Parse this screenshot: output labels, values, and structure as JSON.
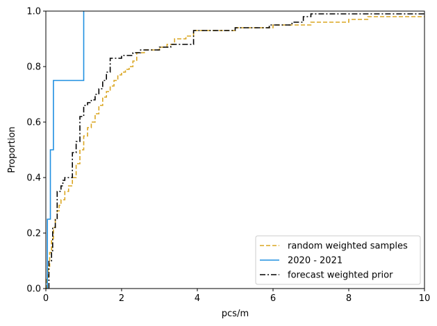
{
  "chart_data": {
    "type": "line",
    "subtype": "empirical-cdf-step",
    "title": "",
    "xlabel": "pcs/m",
    "ylabel": "Proportion",
    "xlim": [
      0,
      10
    ],
    "ylim": [
      0,
      1
    ],
    "x_ticks": [
      "0",
      "2",
      "4",
      "6",
      "8",
      "10"
    ],
    "y_ticks": [
      "0.0",
      "0.2",
      "0.4",
      "0.6",
      "0.8",
      "1.0"
    ],
    "grid": false,
    "legend": {
      "position": "lower-right"
    },
    "series": [
      {
        "name": "random weighted samples",
        "color": "#DAA520",
        "style": "dashed",
        "points": [
          [
            0,
            0
          ],
          [
            0.02,
            0.04
          ],
          [
            0.06,
            0.08
          ],
          [
            0.1,
            0.13
          ],
          [
            0.15,
            0.18
          ],
          [
            0.2,
            0.22
          ],
          [
            0.25,
            0.25
          ],
          [
            0.3,
            0.28
          ],
          [
            0.35,
            0.3
          ],
          [
            0.4,
            0.32
          ],
          [
            0.5,
            0.35
          ],
          [
            0.6,
            0.37
          ],
          [
            0.7,
            0.4
          ],
          [
            0.8,
            0.45
          ],
          [
            0.9,
            0.5
          ],
          [
            1.0,
            0.55
          ],
          [
            1.1,
            0.58
          ],
          [
            1.2,
            0.6
          ],
          [
            1.3,
            0.63
          ],
          [
            1.4,
            0.66
          ],
          [
            1.5,
            0.69
          ],
          [
            1.6,
            0.71
          ],
          [
            1.7,
            0.73
          ],
          [
            1.8,
            0.75
          ],
          [
            1.9,
            0.77
          ],
          [
            2.0,
            0.78
          ],
          [
            2.1,
            0.79
          ],
          [
            2.2,
            0.8
          ],
          [
            2.3,
            0.82
          ],
          [
            2.4,
            0.85
          ],
          [
            2.6,
            0.86
          ],
          [
            2.8,
            0.86
          ],
          [
            3.0,
            0.87
          ],
          [
            3.2,
            0.88
          ],
          [
            3.4,
            0.9
          ],
          [
            3.7,
            0.91
          ],
          [
            3.9,
            0.93
          ],
          [
            4.5,
            0.93
          ],
          [
            5.0,
            0.94
          ],
          [
            5.5,
            0.94
          ],
          [
            6.0,
            0.95
          ],
          [
            6.5,
            0.95
          ],
          [
            7.0,
            0.96
          ],
          [
            7.5,
            0.96
          ],
          [
            8.0,
            0.97
          ],
          [
            8.5,
            0.98
          ],
          [
            9.0,
            0.98
          ],
          [
            10,
            0.98
          ]
        ]
      },
      {
        "name": "2020 - 2021",
        "color": "#1E8FE1",
        "style": "solid",
        "points": [
          [
            0.04,
            0
          ],
          [
            0.04,
            0.25
          ],
          [
            0.12,
            0.25
          ],
          [
            0.12,
            0.5
          ],
          [
            0.2,
            0.5
          ],
          [
            0.2,
            0.75
          ],
          [
            1.0,
            0.75
          ],
          [
            1.0,
            1.0
          ]
        ]
      },
      {
        "name": "forecast weighted prior",
        "color": "#000000",
        "style": "dashdot",
        "points": [
          [
            0.08,
            0
          ],
          [
            0.08,
            0.1
          ],
          [
            0.15,
            0.13
          ],
          [
            0.18,
            0.22
          ],
          [
            0.25,
            0.25
          ],
          [
            0.3,
            0.35
          ],
          [
            0.4,
            0.37
          ],
          [
            0.45,
            0.39
          ],
          [
            0.5,
            0.4
          ],
          [
            0.6,
            0.4
          ],
          [
            0.7,
            0.49
          ],
          [
            0.8,
            0.53
          ],
          [
            0.9,
            0.62
          ],
          [
            1.0,
            0.66
          ],
          [
            1.1,
            0.67
          ],
          [
            1.2,
            0.68
          ],
          [
            1.3,
            0.7
          ],
          [
            1.4,
            0.72
          ],
          [
            1.5,
            0.75
          ],
          [
            1.6,
            0.78
          ],
          [
            1.7,
            0.83
          ],
          [
            2.0,
            0.84
          ],
          [
            2.3,
            0.85
          ],
          [
            2.5,
            0.86
          ],
          [
            2.8,
            0.86
          ],
          [
            3.0,
            0.87
          ],
          [
            3.3,
            0.88
          ],
          [
            3.8,
            0.88
          ],
          [
            3.9,
            0.93
          ],
          [
            4.5,
            0.93
          ],
          [
            5.0,
            0.94
          ],
          [
            5.5,
            0.94
          ],
          [
            5.9,
            0.95
          ],
          [
            6.5,
            0.96
          ],
          [
            6.8,
            0.98
          ],
          [
            7.0,
            0.99
          ],
          [
            10,
            0.99
          ]
        ]
      }
    ]
  }
}
